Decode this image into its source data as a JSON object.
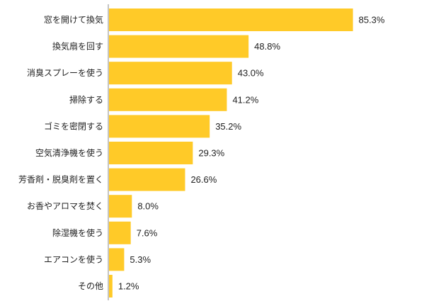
{
  "chart_data": {
    "type": "bar",
    "orientation": "horizontal",
    "categories": [
      "窓を開けて換気",
      "換気扇を回す",
      "消臭スプレーを使う",
      "掃除する",
      "ゴミを密閉する",
      "空気清浄機を使う",
      "芳香剤・脱臭剤を置く",
      "お香やアロマを焚く",
      "除湿機を使う",
      "エアコンを使う",
      "その他"
    ],
    "values": [
      85.3,
      48.8,
      43.0,
      41.2,
      35.2,
      29.3,
      26.6,
      8.0,
      7.6,
      5.3,
      1.2
    ],
    "value_labels": [
      "85.3%",
      "48.8%",
      "43.0%",
      "41.2%",
      "35.2%",
      "29.3%",
      "26.6%",
      "8.0%",
      "7.6%",
      "5.3%",
      "1.2%"
    ],
    "unit": "%",
    "xlim": [
      0,
      100
    ],
    "grid": false,
    "bar_color": "#FFCA28",
    "axis_color": "#888888"
  }
}
